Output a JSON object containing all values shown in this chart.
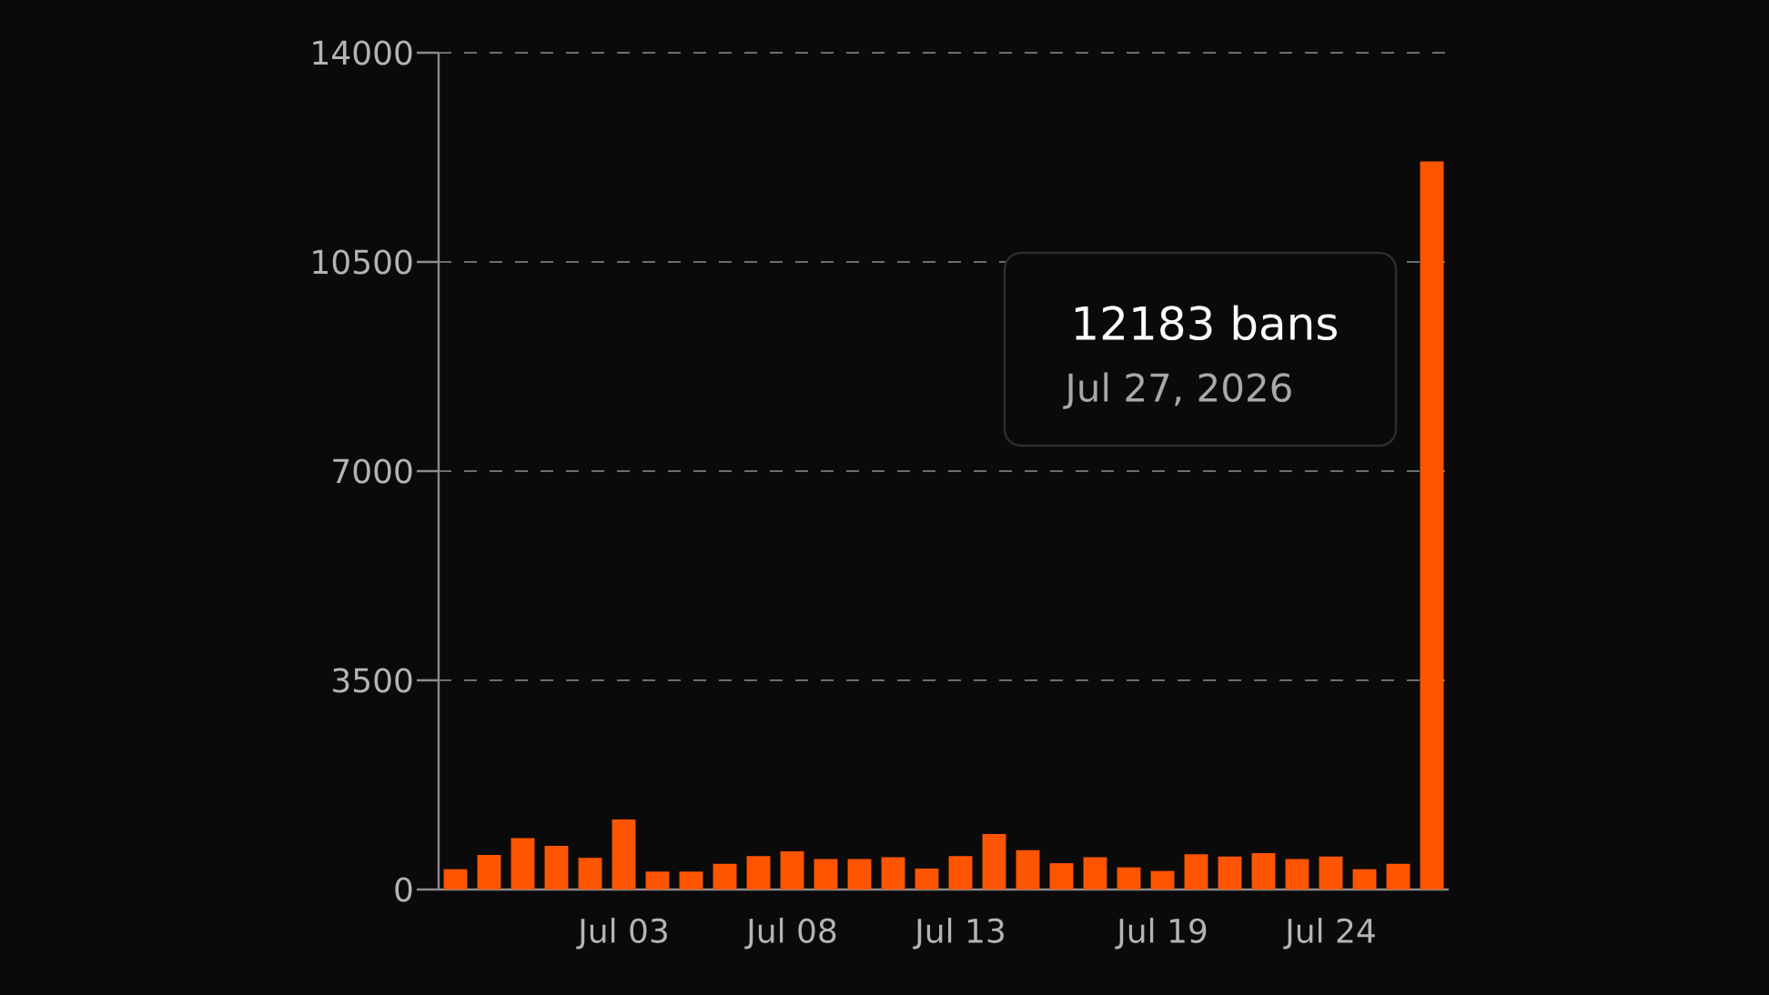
{
  "chart_data": {
    "type": "bar",
    "x": [
      "2026-06-28",
      "2026-06-29",
      "2026-06-30",
      "2026-07-01",
      "2026-07-02",
      "2026-07-03",
      "2026-07-04",
      "2026-07-05",
      "2026-07-06",
      "2026-07-07",
      "2026-07-08",
      "2026-07-09",
      "2026-07-10",
      "2026-07-11",
      "2026-07-12",
      "2026-07-13",
      "2026-07-14",
      "2026-07-15",
      "2026-07-16",
      "2026-07-17",
      "2026-07-18",
      "2026-07-19",
      "2026-07-20",
      "2026-07-21",
      "2026-07-22",
      "2026-07-23",
      "2026-07-24",
      "2026-07-25",
      "2026-07-26",
      "2026-07-27"
    ],
    "values": [
      340,
      580,
      860,
      730,
      530,
      1170,
      300,
      300,
      430,
      560,
      640,
      510,
      510,
      540,
      350,
      560,
      930,
      660,
      440,
      540,
      370,
      310,
      590,
      550,
      610,
      510,
      550,
      340,
      430,
      12183
    ],
    "color": "#ff5500",
    "xlim": [
      "2026-06-27T12:00",
      "2026-07-27T12:00"
    ],
    "xticks": [
      {
        "value": "2026-07-03",
        "label": "Jul 03"
      },
      {
        "value": "2026-07-08",
        "label": "Jul 08"
      },
      {
        "value": "2026-07-13",
        "label": "Jul 13"
      },
      {
        "value": "2026-07-19",
        "label": "Jul 19"
      },
      {
        "value": "2026-07-24",
        "label": "Jul 24"
      }
    ],
    "ylim": [
      0,
      14000
    ],
    "yticks": [
      0,
      3500,
      7000,
      10500,
      14000
    ],
    "grid": "y",
    "annotations": [
      "12183 bans",
      "Jul 27, 2026"
    ]
  }
}
